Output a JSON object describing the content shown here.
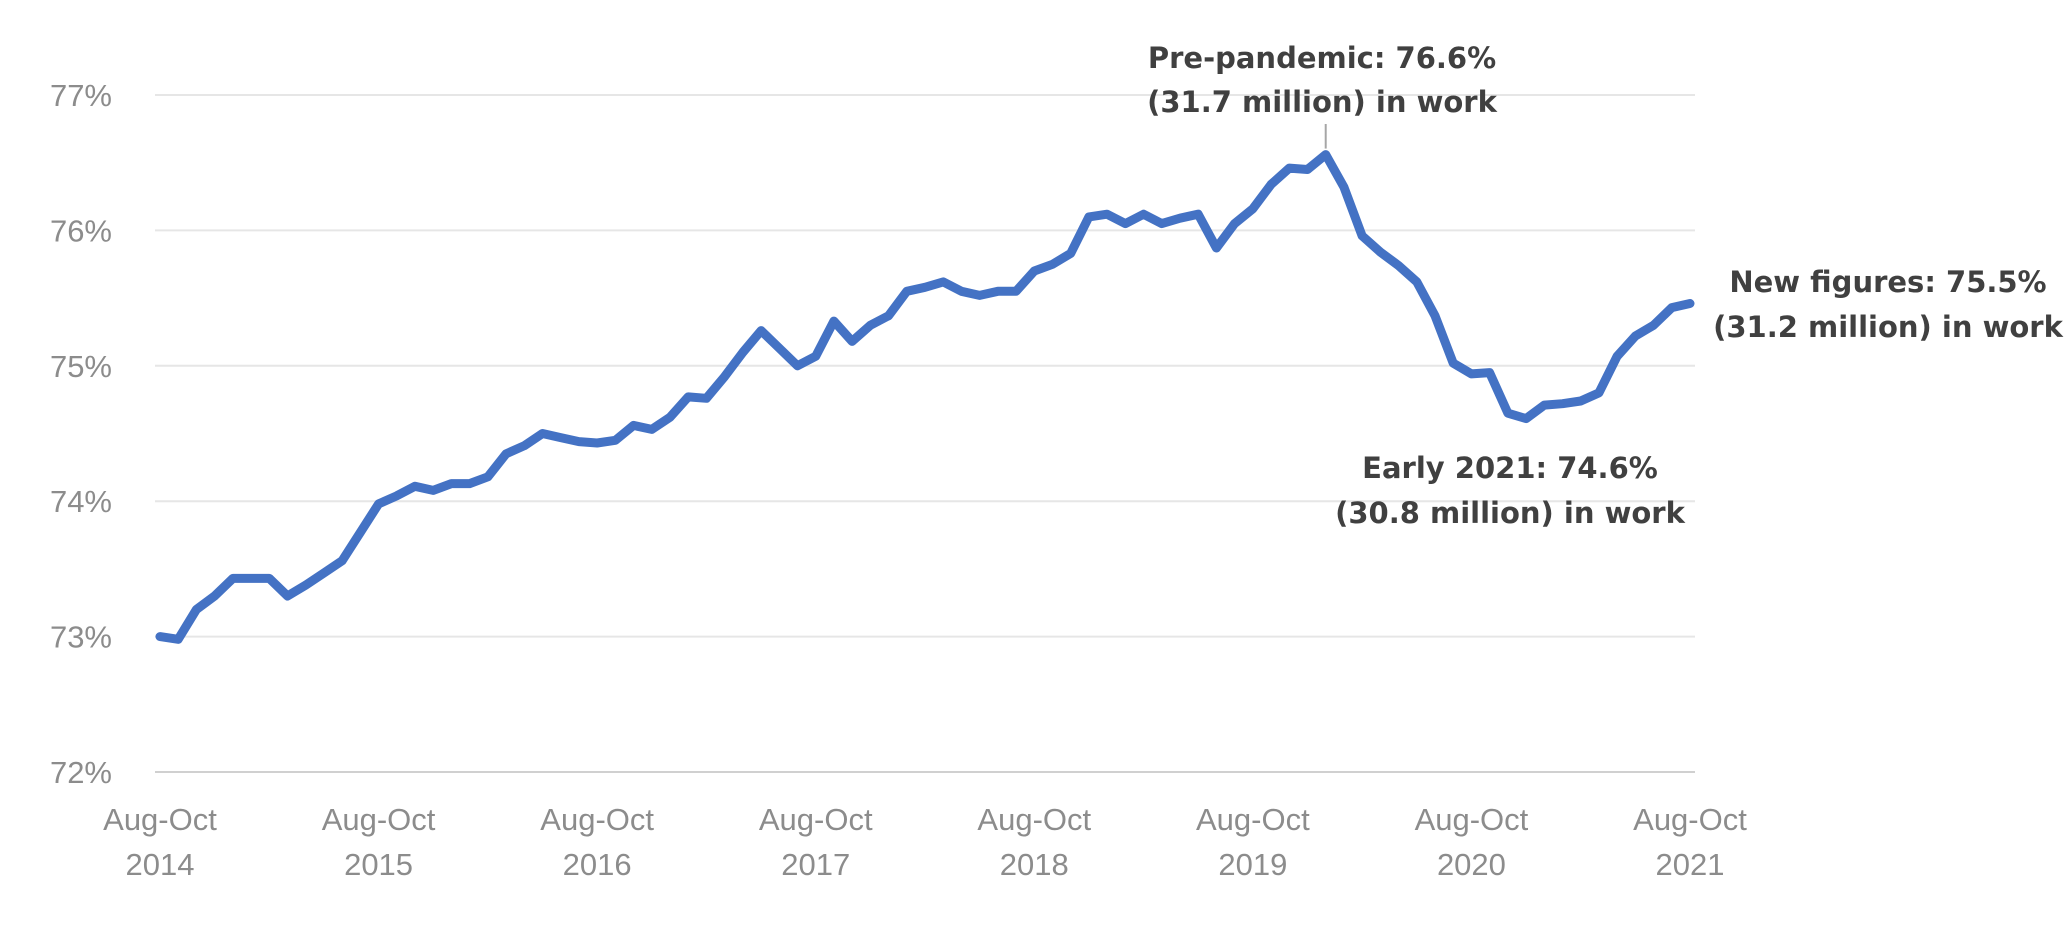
{
  "chart_data": {
    "type": "line",
    "y_unit": "%",
    "ylim": [
      72,
      77
    ],
    "y_ticks": [
      "72%",
      "73%",
      "74%",
      "75%",
      "76%",
      "77%"
    ],
    "grid": true,
    "x_ticks": [
      {
        "line1": "Aug-Oct",
        "line2": "2014"
      },
      {
        "line1": "Aug-Oct",
        "line2": "2015"
      },
      {
        "line1": "Aug-Oct",
        "line2": "2016"
      },
      {
        "line1": "Aug-Oct",
        "line2": "2017"
      },
      {
        "line1": "Aug-Oct",
        "line2": "2018"
      },
      {
        "line1": "Aug-Oct",
        "line2": "2019"
      },
      {
        "line1": "Aug-Oct",
        "line2": "2020"
      },
      {
        "line1": "Aug-Oct",
        "line2": "2021"
      }
    ],
    "series": [
      {
        "color": "#4472c4",
        "values": [
          73.0,
          72.98,
          73.2,
          73.3,
          73.43,
          73.43,
          73.43,
          73.3,
          73.38,
          73.47,
          73.56,
          73.77,
          73.98,
          74.04,
          74.11,
          74.08,
          74.13,
          74.13,
          74.18,
          74.35,
          74.41,
          74.5,
          74.47,
          74.44,
          74.43,
          74.45,
          74.56,
          74.53,
          74.62,
          74.77,
          74.76,
          74.92,
          75.1,
          75.26,
          75.13,
          75.0,
          75.07,
          75.33,
          75.18,
          75.3,
          75.37,
          75.55,
          75.58,
          75.62,
          75.55,
          75.52,
          75.55,
          75.55,
          75.7,
          75.75,
          75.83,
          76.1,
          76.12,
          76.05,
          76.12,
          76.05,
          76.09,
          76.12,
          75.87,
          76.05,
          76.16,
          76.34,
          76.46,
          76.45,
          76.56,
          76.32,
          75.96,
          75.84,
          75.74,
          75.62,
          75.37,
          75.02,
          74.94,
          74.95,
          74.65,
          74.61,
          74.71,
          74.72,
          74.74,
          74.8,
          75.07,
          75.22,
          75.3,
          75.43,
          75.46
        ]
      }
    ],
    "annotations": [
      {
        "line1": "Pre-pandemic: 76.6%",
        "line2": "(31.7 million) in work"
      },
      {
        "line1": "New figures: 75.5%",
        "line2": "(31.2 million) in work"
      },
      {
        "line1": "Early 2021: 74.6%",
        "line2": "(30.8 million) in work"
      }
    ]
  }
}
